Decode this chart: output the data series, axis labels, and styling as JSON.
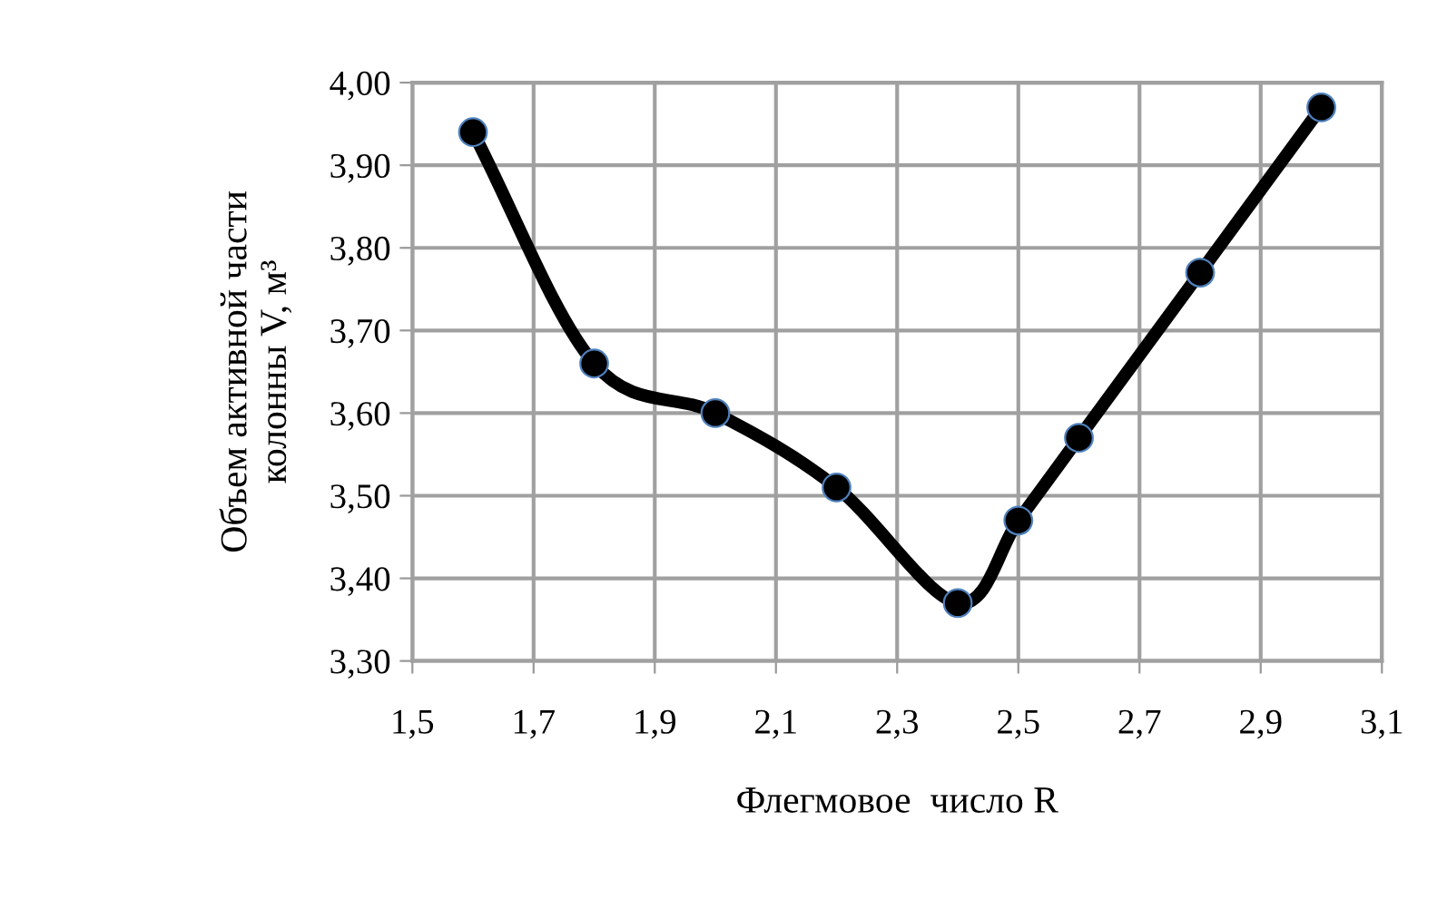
{
  "chart_data": {
    "type": "line",
    "xlabel": "Флегмовое  число R",
    "ylabel": "Объем активной части\nколонны V, м³",
    "x": [
      1.6,
      1.8,
      2.0,
      2.2,
      2.4,
      2.5,
      2.6,
      2.8,
      3.0
    ],
    "series": [
      {
        "color": "#000000",
        "values": [
          3.94,
          3.66,
          3.6,
          3.51,
          3.37,
          3.47,
          3.57,
          3.77,
          3.97
        ]
      }
    ],
    "xlim": [
      1.5,
      3.1
    ],
    "xticks": [
      {
        "value": 1.5,
        "label": "1,5"
      },
      {
        "value": 1.7,
        "label": "1,7"
      },
      {
        "value": 1.9,
        "label": "1,9"
      },
      {
        "value": 2.1,
        "label": "2,1"
      },
      {
        "value": 2.3,
        "label": "2,3"
      },
      {
        "value": 2.5,
        "label": "2,5"
      },
      {
        "value": 2.7,
        "label": "2,7"
      },
      {
        "value": 2.9,
        "label": "2,9"
      },
      {
        "value": 3.1,
        "label": "3,1"
      }
    ],
    "ylim": [
      3.3,
      4.0
    ],
    "yticks": [
      {
        "value": 3.3,
        "label": "3,30"
      },
      {
        "value": 3.4,
        "label": "3,40"
      },
      {
        "value": 3.5,
        "label": "3,50"
      },
      {
        "value": 3.6,
        "label": "3,60"
      },
      {
        "value": 3.7,
        "label": "3,70"
      },
      {
        "value": 3.8,
        "label": "3,80"
      },
      {
        "value": 3.9,
        "label": "3,90"
      },
      {
        "value": 4.0,
        "label": "4,00"
      }
    ],
    "grid": true,
    "legend": false,
    "marker": "circle",
    "line_style": "solid"
  }
}
